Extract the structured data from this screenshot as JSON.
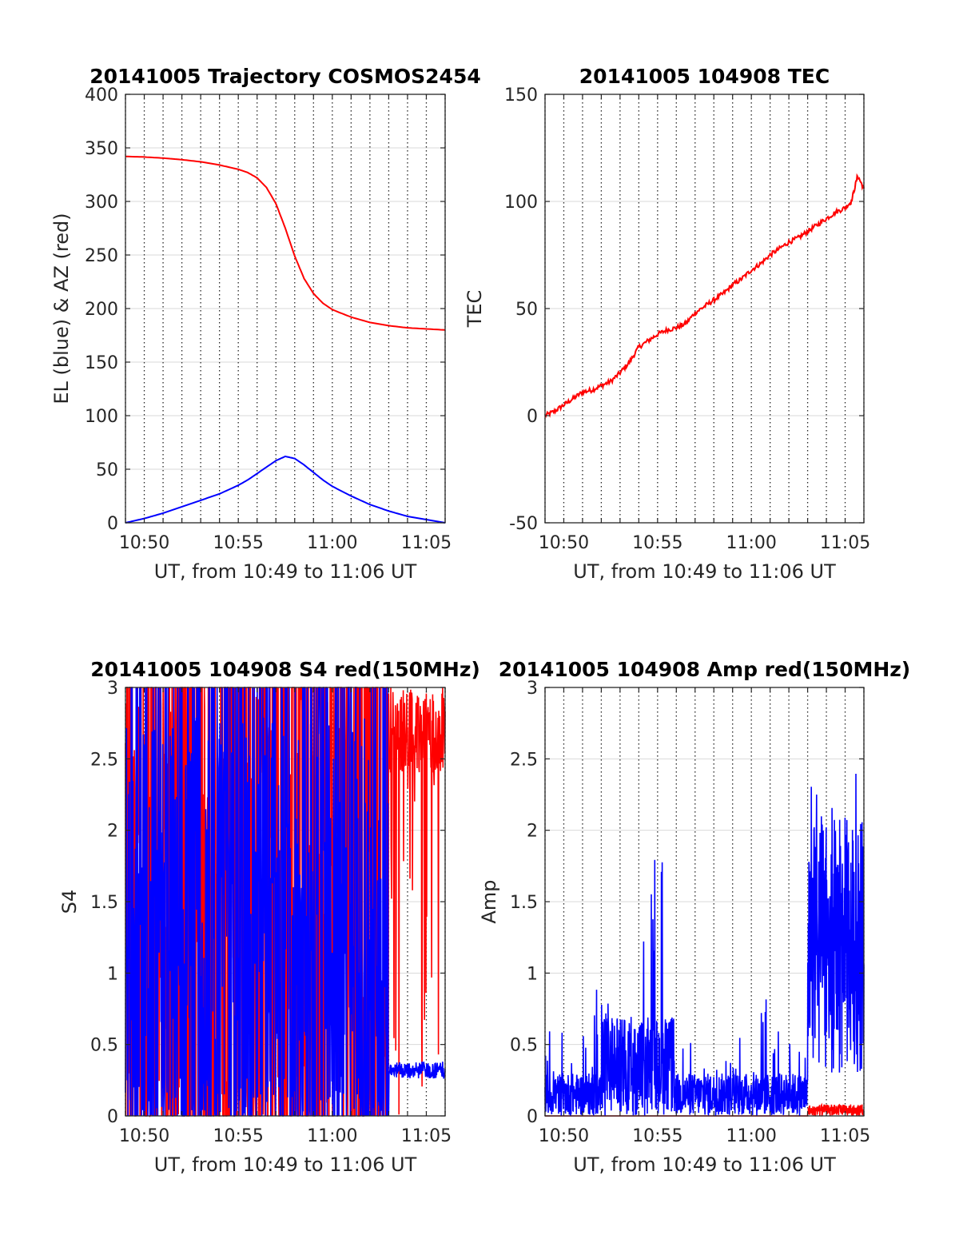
{
  "colors": {
    "red": "#ff0000",
    "blue": "#0000ff",
    "axis": "#262626",
    "grid": "#262626"
  },
  "chart_data": [
    {
      "type": "line",
      "title": "20141005 Trajectory COSMOS2454",
      "xlabel": "UT, from 10:49 to 11:06 UT",
      "ylabel": "EL (blue) & AZ (red)",
      "xlim": [
        "10:49",
        "11:06"
      ],
      "ylim": [
        0,
        400
      ],
      "xticks": [
        "10:50",
        "10:55",
        "11:00",
        "11:05"
      ],
      "yticks": [
        "0",
        "50",
        "100",
        "150",
        "200",
        "250",
        "300",
        "350",
        "400"
      ],
      "ytick_values": [
        0,
        50,
        100,
        150,
        200,
        250,
        300,
        350,
        400
      ],
      "grid": "dotted vertical every minute, horizontal at y ticks",
      "series": [
        {
          "color": "red",
          "x": [
            "10:49",
            "10:50",
            "10:51",
            "10:52",
            "10:53",
            "10:54",
            "10:55",
            "10:55:30",
            "10:56",
            "10:56:30",
            "10:57",
            "10:57:30",
            "10:58",
            "10:58:30",
            "10:59",
            "10:59:30",
            "11:00",
            "11:01",
            "11:02",
            "11:03",
            "11:04",
            "11:05",
            "11:06"
          ],
          "y": [
            342,
            341.5,
            340.5,
            339,
            337,
            334,
            330,
            327,
            322,
            313,
            298,
            275,
            249,
            228,
            214,
            205,
            199,
            192,
            187,
            184,
            182,
            181,
            180
          ]
        },
        {
          "color": "blue",
          "x": [
            "10:49",
            "10:50",
            "10:51",
            "10:52",
            "10:53",
            "10:54",
            "10:55",
            "10:55:30",
            "10:56",
            "10:56:30",
            "10:57",
            "10:57:30",
            "10:58",
            "10:58:30",
            "10:59",
            "10:59:30",
            "11:00",
            "11:01",
            "11:02",
            "11:03",
            "11:04",
            "11:05",
            "11:06"
          ],
          "y": [
            0,
            4,
            9,
            15,
            21,
            27,
            35,
            40,
            46,
            52,
            58,
            62,
            60,
            54,
            47,
            40,
            34,
            25,
            17,
            11,
            6,
            3,
            0
          ]
        }
      ]
    },
    {
      "type": "line",
      "title": "20141005 104908 TEC",
      "xlabel": "UT, from 10:49 to 11:06 UT",
      "ylabel": "TEC",
      "xlim": [
        "10:49",
        "11:06"
      ],
      "ylim": [
        -50,
        150
      ],
      "xticks": [
        "10:50",
        "10:55",
        "11:00",
        "11:05"
      ],
      "yticks": [
        "-50",
        "0",
        "50",
        "100",
        "150"
      ],
      "ytick_values": [
        -50,
        0,
        50,
        100,
        150
      ],
      "grid": "dotted vertical every minute, horizontal at y ticks",
      "series": [
        {
          "color": "red",
          "x": [
            "10:49",
            "10:49:30",
            "10:50",
            "10:50:30",
            "10:51",
            "10:51:30",
            "10:52",
            "10:52:30",
            "10:53",
            "10:53:30",
            "10:54",
            "10:54:30",
            "10:55",
            "10:55:30",
            "10:56",
            "10:56:30",
            "10:57",
            "10:57:30",
            "10:58",
            "10:58:30",
            "10:59",
            "10:59:30",
            "11:00",
            "11:00:30",
            "11:01",
            "11:01:30",
            "11:02",
            "11:02:30",
            "11:03",
            "11:03:30",
            "11:04",
            "11:04:30",
            "11:05",
            "11:05:20",
            "11:05:40",
            "11:06"
          ],
          "y": [
            0,
            2,
            5,
            8,
            11,
            12,
            14,
            16,
            20,
            25,
            32,
            35,
            38,
            40,
            41,
            43,
            48,
            51,
            54,
            57,
            61,
            64,
            68,
            71,
            75,
            78,
            81,
            83,
            86,
            89,
            92,
            95,
            97,
            100,
            112,
            106
          ]
        }
      ]
    },
    {
      "type": "line",
      "title": "20141005 104908 S4 red(150MHz)",
      "xlabel": "UT, from 10:49 to 11:06 UT",
      "ylabel": "S4",
      "xlim": [
        "10:49",
        "11:06"
      ],
      "ylim": [
        0,
        3
      ],
      "xticks": [
        "10:50",
        "10:55",
        "11:00",
        "11:05"
      ],
      "yticks": [
        "0",
        "0.5",
        "1",
        "1.5",
        "2",
        "2.5",
        "3"
      ],
      "ytick_values": [
        0,
        0.5,
        1,
        1.5,
        2,
        2.5,
        3
      ],
      "grid": "dotted vertical every minute, horizontal at y ticks",
      "series": [
        {
          "color": "red",
          "description_values": "noisy, spanning 0 to 3; settles near 2.4-3 after 11:03"
        },
        {
          "color": "blue",
          "description_values": "noisy, spanning 0 to 3; settles near 0.3 after 11:03"
        }
      ]
    },
    {
      "type": "line",
      "title": "20141005 104908 Amp red(150MHz)",
      "xlabel": "UT, from 10:49 to 11:06 UT",
      "ylabel": "Amp",
      "xlim": [
        "10:49",
        "11:06"
      ],
      "ylim": [
        0,
        3
      ],
      "xticks": [
        "10:50",
        "10:55",
        "11:00",
        "11:05"
      ],
      "yticks": [
        "0",
        "0.5",
        "1",
        "1.5",
        "2",
        "2.5",
        "3"
      ],
      "ytick_values": [
        0,
        0.5,
        1,
        1.5,
        2,
        2.5,
        3
      ],
      "grid": "dotted vertical every minute, horizontal at y ticks",
      "series": [
        {
          "color": "blue",
          "description_values": "noisy 0-0.5 with bursts to 1.8 near 10:54, rising to 0.3-2.4 after 11:03"
        },
        {
          "color": "red",
          "description_values": "near 0, small values up to 0.08 after 11:03"
        }
      ]
    }
  ]
}
